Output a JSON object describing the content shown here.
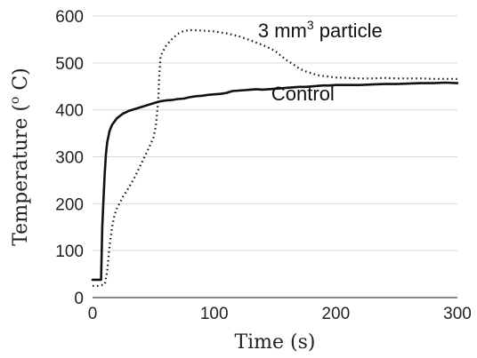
{
  "chart_data": {
    "type": "line",
    "title": "",
    "xlabel": "Time (s)",
    "ylabel": "Temperature (",
    "ylabel_sup": "o",
    "ylabel_end": " C)",
    "xlim": [
      0,
      300
    ],
    "ylim": [
      0,
      600
    ],
    "x_ticks": [
      0,
      100,
      200,
      300
    ],
    "y_ticks": [
      0,
      100,
      200,
      300,
      400,
      500,
      600
    ],
    "grid": "horizontal",
    "legend": "none",
    "series": [
      {
        "name": "Control",
        "style": "solid",
        "color": "#111111",
        "label_x": 147,
        "label_y": 420,
        "points": [
          [
            0,
            38
          ],
          [
            5,
            38
          ],
          [
            7,
            38
          ],
          [
            8,
            150
          ],
          [
            9,
            210
          ],
          [
            10,
            265
          ],
          [
            11,
            305
          ],
          [
            12,
            330
          ],
          [
            14,
            355
          ],
          [
            16,
            368
          ],
          [
            20,
            382
          ],
          [
            25,
            392
          ],
          [
            30,
            398
          ],
          [
            35,
            402
          ],
          [
            40,
            406
          ],
          [
            45,
            410
          ],
          [
            50,
            414
          ],
          [
            55,
            418
          ],
          [
            60,
            420
          ],
          [
            65,
            421
          ],
          [
            70,
            423
          ],
          [
            75,
            424
          ],
          [
            80,
            427
          ],
          [
            85,
            429
          ],
          [
            90,
            430
          ],
          [
            95,
            432
          ],
          [
            100,
            433
          ],
          [
            105,
            434
          ],
          [
            110,
            436
          ],
          [
            115,
            440
          ],
          [
            120,
            441
          ],
          [
            125,
            442
          ],
          [
            130,
            443
          ],
          [
            135,
            444
          ],
          [
            140,
            443
          ],
          [
            145,
            444
          ],
          [
            150,
            445
          ],
          [
            155,
            446
          ],
          [
            160,
            447
          ],
          [
            165,
            448
          ],
          [
            170,
            449
          ],
          [
            175,
            449
          ],
          [
            180,
            450
          ],
          [
            185,
            451
          ],
          [
            190,
            452
          ],
          [
            195,
            452
          ],
          [
            200,
            453
          ],
          [
            210,
            453
          ],
          [
            220,
            453
          ],
          [
            230,
            454
          ],
          [
            240,
            455
          ],
          [
            250,
            455
          ],
          [
            260,
            456
          ],
          [
            270,
            457
          ],
          [
            280,
            457
          ],
          [
            290,
            458
          ],
          [
            300,
            457
          ]
        ]
      },
      {
        "name": "3 mm",
        "name_sup": "3",
        "name_end": " particle",
        "style": "dotted",
        "color": "#111111",
        "label_x": 136,
        "label_y": 555,
        "points": [
          [
            0,
            25
          ],
          [
            5,
            25
          ],
          [
            10,
            28
          ],
          [
            12,
            55
          ],
          [
            14,
            110
          ],
          [
            16,
            150
          ],
          [
            18,
            175
          ],
          [
            20,
            190
          ],
          [
            25,
            215
          ],
          [
            30,
            235
          ],
          [
            35,
            258
          ],
          [
            40,
            285
          ],
          [
            45,
            312
          ],
          [
            50,
            340
          ],
          [
            52,
            365
          ],
          [
            54,
            420
          ],
          [
            55,
            480
          ],
          [
            56,
            515
          ],
          [
            58,
            525
          ],
          [
            60,
            535
          ],
          [
            65,
            550
          ],
          [
            70,
            562
          ],
          [
            75,
            568
          ],
          [
            80,
            570
          ],
          [
            90,
            569
          ],
          [
            100,
            567
          ],
          [
            110,
            563
          ],
          [
            120,
            557
          ],
          [
            130,
            548
          ],
          [
            140,
            538
          ],
          [
            150,
            526
          ],
          [
            155,
            515
          ],
          [
            160,
            505
          ],
          [
            165,
            497
          ],
          [
            170,
            488
          ],
          [
            175,
            482
          ],
          [
            180,
            478
          ],
          [
            185,
            474
          ],
          [
            190,
            472
          ],
          [
            200,
            469
          ],
          [
            210,
            468
          ],
          [
            220,
            467
          ],
          [
            230,
            467
          ],
          [
            240,
            468
          ],
          [
            250,
            467
          ],
          [
            260,
            467
          ],
          [
            270,
            467
          ],
          [
            280,
            466
          ],
          [
            290,
            466
          ],
          [
            300,
            466
          ]
        ]
      }
    ]
  }
}
